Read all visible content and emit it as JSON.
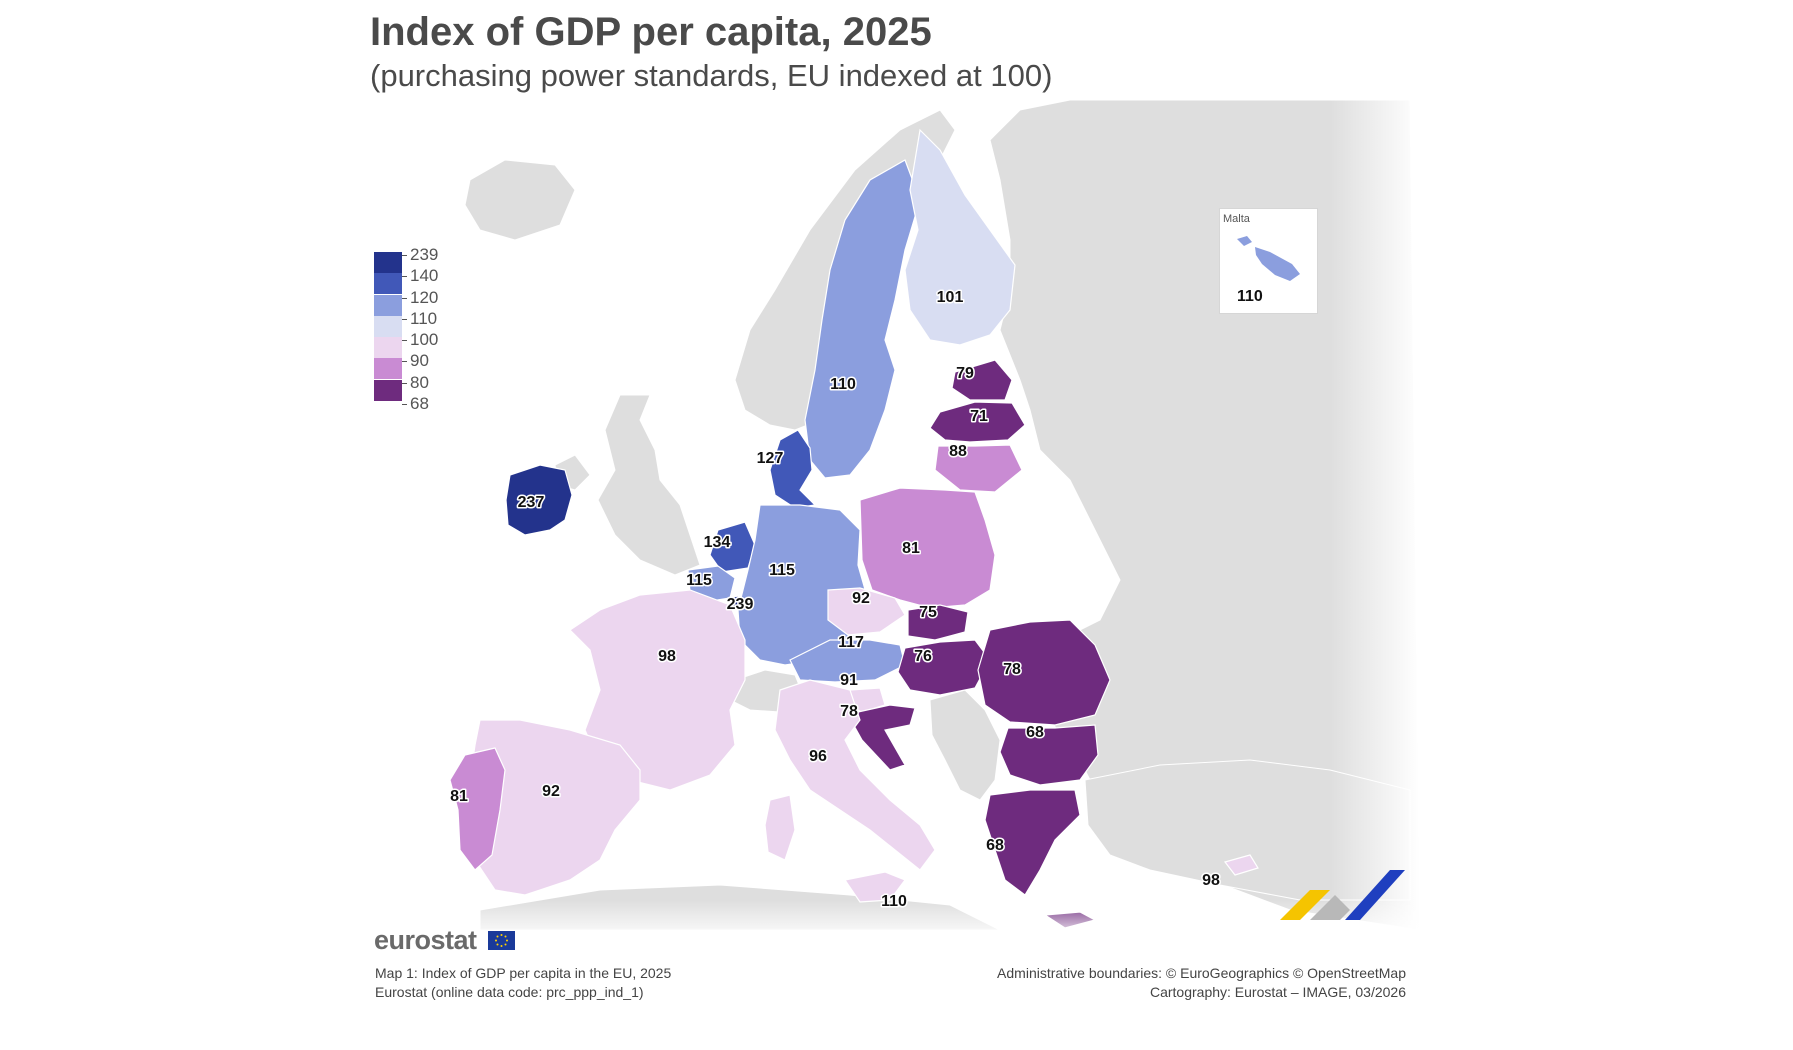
{
  "header": {
    "title": "Index of GDP per capita, 2025",
    "subtitle": "(purchasing power standards, EU indexed at 100)"
  },
  "legend": {
    "classes": [
      {
        "label": "239",
        "color": "#23338c"
      },
      {
        "label": "140",
        "color": "#4158b8"
      },
      {
        "label": "120",
        "color": "#8b9ede"
      },
      {
        "label": "110",
        "color": "#d8ddf2"
      },
      {
        "label": "100",
        "color": "#ecd6ef"
      },
      {
        "label": "90",
        "color": "#c98bd3"
      },
      {
        "label": "80",
        "color": "#6e2b7e"
      },
      {
        "label": "68",
        "color": ""
      }
    ]
  },
  "regions": {
    "ireland": "237",
    "denmark": "127",
    "netherlands": "134",
    "belgium": "115",
    "luxembourg": "239",
    "germany": "115",
    "france": "98",
    "spain": "92",
    "portugal": "81",
    "italy": "96",
    "malta_sicily": "110",
    "austria": "117",
    "czechia": "92",
    "poland": "81",
    "slovakia": "75",
    "hungary": "76",
    "romania": "78",
    "bulgaria": "68",
    "greece": "68",
    "slovenia": "91",
    "croatia": "78",
    "sweden": "110",
    "finland": "101",
    "estonia": "79",
    "latvia": "71",
    "lithuania": "88",
    "cyprus": "98"
  },
  "inset": {
    "title": "Malta",
    "value": "110"
  },
  "branding": {
    "logo_text": "eurostat"
  },
  "footer": {
    "left_line1": "Map 1: Index of GDP per capita in the EU, 2025",
    "left_line2": "Eurostat (online data code: prc_ppp_ind_1)",
    "right_line1": "Administrative boundaries: © EuroGeographics © OpenStreetMap",
    "right_line2": "Cartography: Eurostat – IMAGE, 03/2026"
  }
}
